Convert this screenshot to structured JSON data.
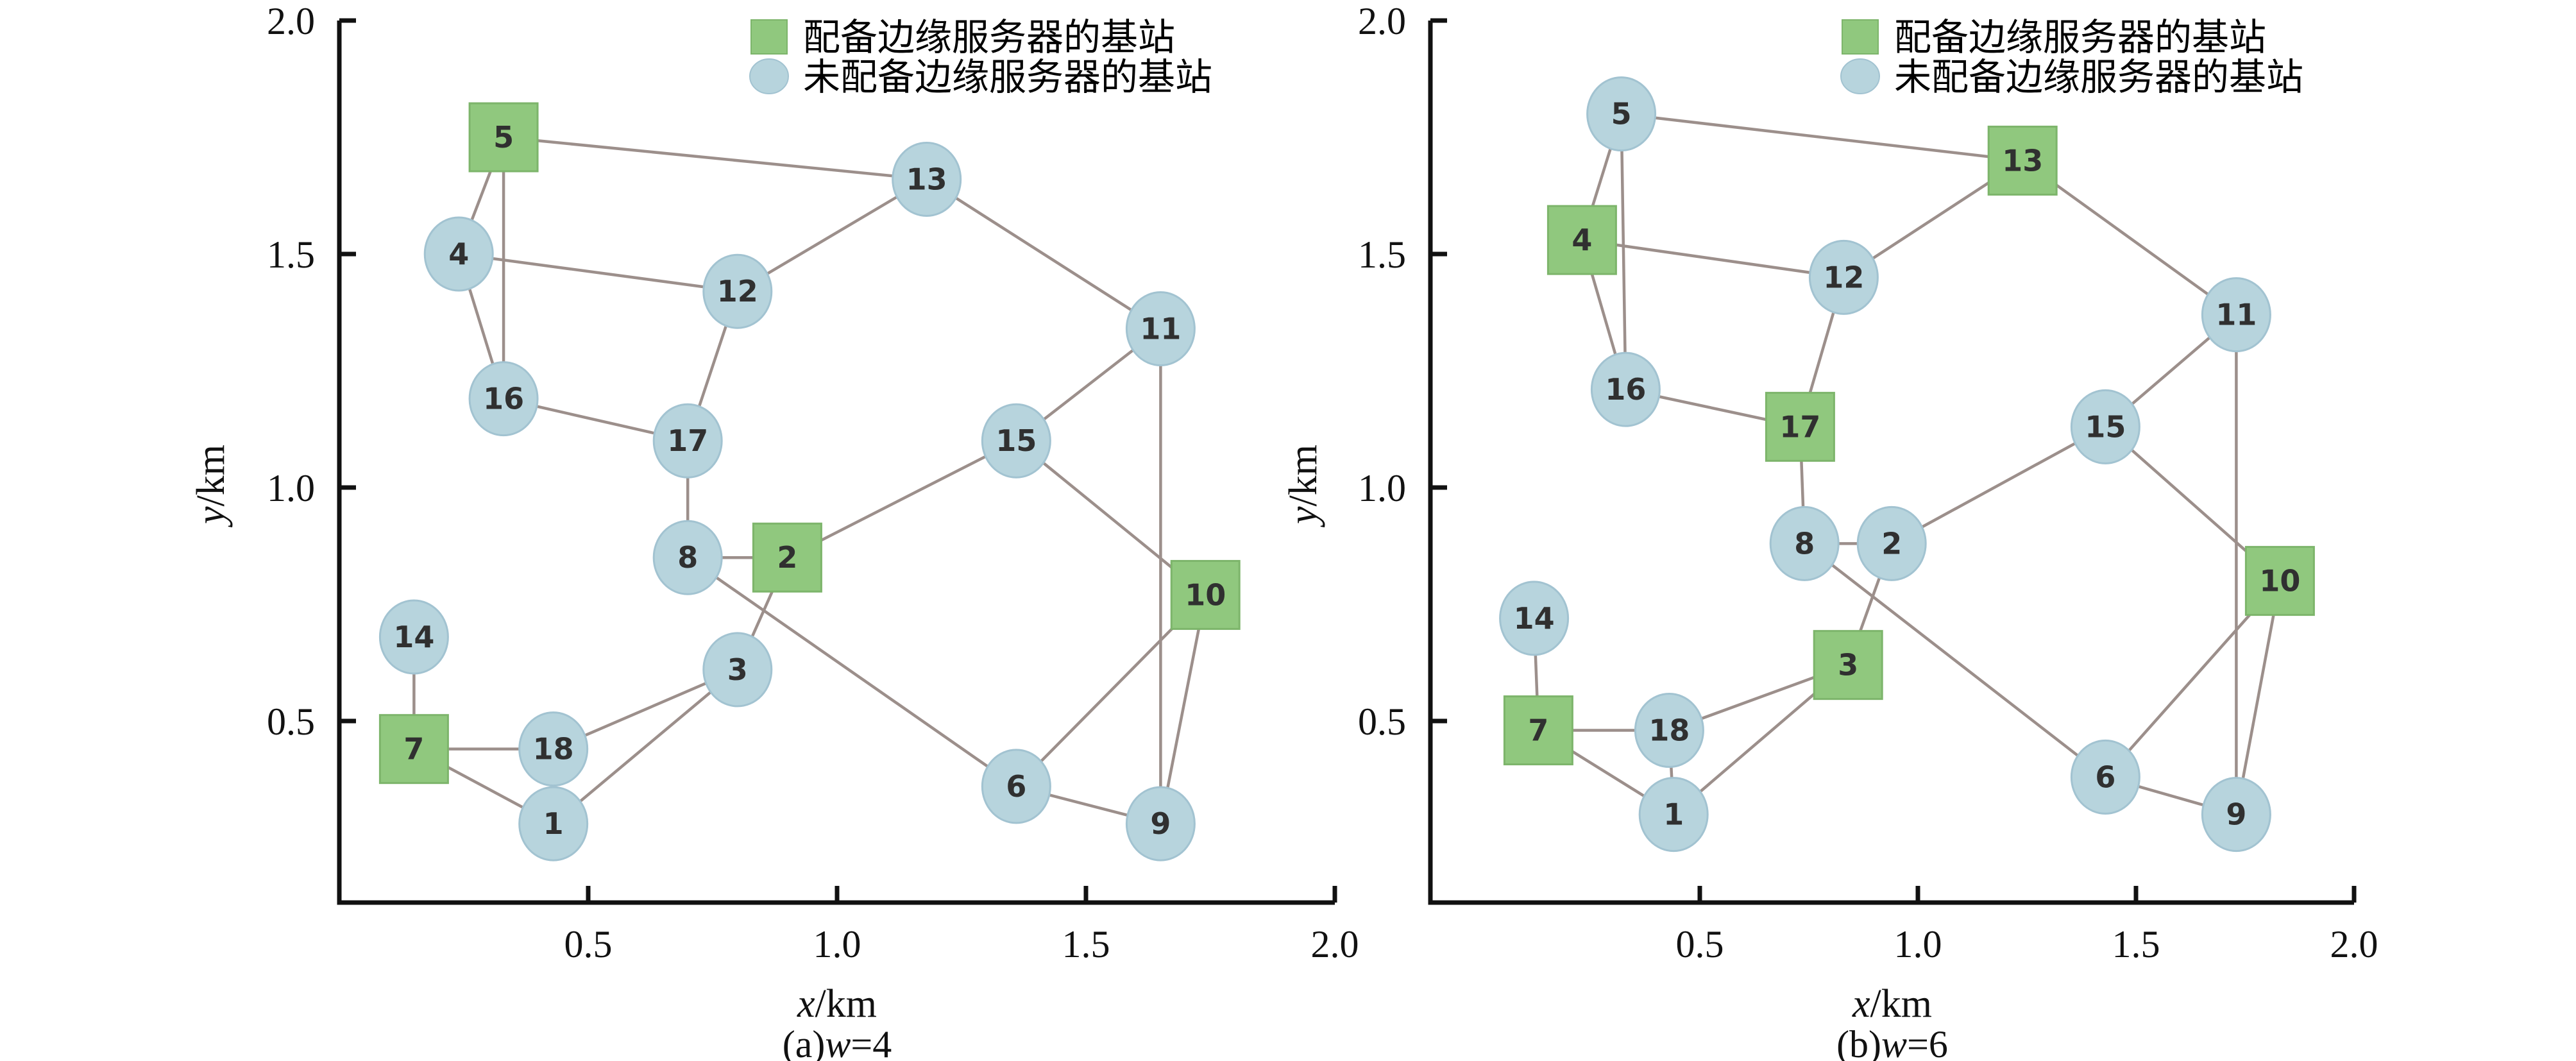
{
  "page": {
    "background": "#ffffff"
  },
  "colors": {
    "server_fill": "#90c87e",
    "server_stroke": "#7db56b",
    "station_fill": "#b7d4dd",
    "station_stroke": "#a2c3d1",
    "edge": "#9c8f8b",
    "axis": "#111111",
    "node_label": "#303030"
  },
  "legend": {
    "server": "配备边缘服务器的基站",
    "no_server": "未配备边缘服务器的基站"
  },
  "axis": {
    "xlabel_var": "x",
    "xlabel_unit": "/km",
    "ylabel_var": "y",
    "ylabel_unit": "/km"
  },
  "panels": [
    {
      "caption_prefix": "(a)",
      "caption_var": "w",
      "caption_suffix": "=4"
    },
    {
      "caption_prefix": "(b)",
      "caption_var": "w",
      "caption_suffix": "=6"
    }
  ],
  "chart_data": [
    {
      "type": "scatter",
      "variant": "network-graph",
      "title": "(a)w=4",
      "xlabel": "x/km",
      "ylabel": "y/km",
      "xlim": [
        0,
        2.0
      ],
      "ylim": [
        0.1,
        2.0
      ],
      "xticks": [
        0.5,
        1.0,
        1.5,
        2.0
      ],
      "yticks": [
        0.5,
        1.0,
        1.5,
        2.0
      ],
      "grid": false,
      "legend_position": "upper center",
      "legend": [
        "配备边缘服务器的基站",
        "未配备边缘服务器的基站"
      ],
      "nodes": [
        {
          "id": 1,
          "x": 0.43,
          "y": 0.28,
          "server": false
        },
        {
          "id": 2,
          "x": 0.9,
          "y": 0.85,
          "server": true
        },
        {
          "id": 3,
          "x": 0.8,
          "y": 0.61,
          "server": false
        },
        {
          "id": 4,
          "x": 0.24,
          "y": 1.5,
          "server": false
        },
        {
          "id": 5,
          "x": 0.33,
          "y": 1.75,
          "server": true
        },
        {
          "id": 6,
          "x": 1.36,
          "y": 0.36,
          "server": false
        },
        {
          "id": 7,
          "x": 0.15,
          "y": 0.44,
          "server": true
        },
        {
          "id": 8,
          "x": 0.7,
          "y": 0.85,
          "server": false
        },
        {
          "id": 9,
          "x": 1.65,
          "y": 0.28,
          "server": false
        },
        {
          "id": 10,
          "x": 1.74,
          "y": 0.77,
          "server": true
        },
        {
          "id": 11,
          "x": 1.65,
          "y": 1.34,
          "server": false
        },
        {
          "id": 12,
          "x": 0.8,
          "y": 1.42,
          "server": false
        },
        {
          "id": 13,
          "x": 1.18,
          "y": 1.66,
          "server": false
        },
        {
          "id": 14,
          "x": 0.15,
          "y": 0.68,
          "server": false
        },
        {
          "id": 15,
          "x": 1.36,
          "y": 1.1,
          "server": false
        },
        {
          "id": 16,
          "x": 0.33,
          "y": 1.19,
          "server": false
        },
        {
          "id": 17,
          "x": 0.7,
          "y": 1.1,
          "server": false
        },
        {
          "id": 18,
          "x": 0.43,
          "y": 0.44,
          "server": false
        }
      ],
      "edges": [
        [
          5,
          4
        ],
        [
          5,
          16
        ],
        [
          5,
          13
        ],
        [
          4,
          16
        ],
        [
          4,
          12
        ],
        [
          12,
          13
        ],
        [
          12,
          17
        ],
        [
          13,
          11
        ],
        [
          16,
          17
        ],
        [
          17,
          8
        ],
        [
          8,
          2
        ],
        [
          8,
          6
        ],
        [
          2,
          3
        ],
        [
          2,
          15
        ],
        [
          3,
          18
        ],
        [
          3,
          1
        ],
        [
          15,
          11
        ],
        [
          15,
          10
        ],
        [
          11,
          9
        ],
        [
          10,
          9
        ],
        [
          10,
          6
        ],
        [
          6,
          9
        ],
        [
          14,
          7
        ],
        [
          7,
          18
        ],
        [
          7,
          1
        ],
        [
          18,
          1
        ]
      ]
    },
    {
      "type": "scatter",
      "variant": "network-graph",
      "title": "(b)w=6",
      "xlabel": "x/km",
      "ylabel": "y/km",
      "xlim": [
        0,
        2.0
      ],
      "ylim": [
        0.1,
        2.0
      ],
      "xticks": [
        0.5,
        1.0,
        1.5,
        2.0
      ],
      "yticks": [
        0.5,
        1.0,
        1.5,
        2.0
      ],
      "grid": false,
      "legend_position": "upper center",
      "legend": [
        "配备边缘服务器的基站",
        "未配备边缘服务器的基站"
      ],
      "nodes": [
        {
          "id": 1,
          "x": 0.44,
          "y": 0.3,
          "server": false
        },
        {
          "id": 2,
          "x": 0.94,
          "y": 0.88,
          "server": false
        },
        {
          "id": 3,
          "x": 0.84,
          "y": 0.62,
          "server": true
        },
        {
          "id": 4,
          "x": 0.23,
          "y": 1.53,
          "server": true
        },
        {
          "id": 5,
          "x": 0.32,
          "y": 1.8,
          "server": false
        },
        {
          "id": 6,
          "x": 1.43,
          "y": 0.38,
          "server": false
        },
        {
          "id": 7,
          "x": 0.13,
          "y": 0.48,
          "server": true
        },
        {
          "id": 8,
          "x": 0.74,
          "y": 0.88,
          "server": false
        },
        {
          "id": 9,
          "x": 1.73,
          "y": 0.3,
          "server": false
        },
        {
          "id": 10,
          "x": 1.83,
          "y": 0.8,
          "server": true
        },
        {
          "id": 11,
          "x": 1.73,
          "y": 1.37,
          "server": false
        },
        {
          "id": 12,
          "x": 0.83,
          "y": 1.45,
          "server": false
        },
        {
          "id": 13,
          "x": 1.24,
          "y": 1.7,
          "server": true
        },
        {
          "id": 14,
          "x": 0.12,
          "y": 0.72,
          "server": false
        },
        {
          "id": 15,
          "x": 1.43,
          "y": 1.13,
          "server": false
        },
        {
          "id": 16,
          "x": 0.33,
          "y": 1.21,
          "server": false
        },
        {
          "id": 17,
          "x": 0.73,
          "y": 1.13,
          "server": true
        },
        {
          "id": 18,
          "x": 0.43,
          "y": 0.48,
          "server": false
        }
      ],
      "edges": [
        [
          5,
          4
        ],
        [
          5,
          16
        ],
        [
          5,
          13
        ],
        [
          4,
          16
        ],
        [
          4,
          12
        ],
        [
          12,
          13
        ],
        [
          12,
          17
        ],
        [
          13,
          11
        ],
        [
          16,
          17
        ],
        [
          17,
          8
        ],
        [
          8,
          2
        ],
        [
          8,
          6
        ],
        [
          2,
          3
        ],
        [
          2,
          15
        ],
        [
          3,
          18
        ],
        [
          3,
          1
        ],
        [
          15,
          11
        ],
        [
          15,
          10
        ],
        [
          11,
          9
        ],
        [
          10,
          9
        ],
        [
          10,
          6
        ],
        [
          6,
          9
        ],
        [
          14,
          7
        ],
        [
          7,
          18
        ],
        [
          7,
          1
        ],
        [
          18,
          1
        ]
      ]
    }
  ]
}
